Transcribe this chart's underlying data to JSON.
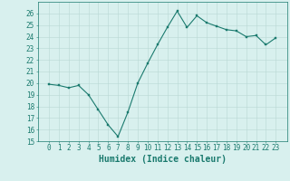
{
  "x": [
    0,
    1,
    2,
    3,
    4,
    5,
    6,
    7,
    8,
    9,
    10,
    11,
    12,
    13,
    14,
    15,
    16,
    17,
    18,
    19,
    20,
    21,
    22,
    23
  ],
  "y": [
    19.9,
    19.8,
    19.6,
    19.8,
    19.0,
    17.7,
    16.4,
    15.4,
    17.5,
    20.0,
    21.7,
    23.3,
    24.8,
    26.2,
    24.8,
    25.8,
    25.2,
    24.9,
    24.6,
    24.5,
    24.0,
    24.1,
    23.3,
    23.9
  ],
  "line_color": "#1a7a6e",
  "marker": "s",
  "marker_size": 1.8,
  "bg_color": "#d8f0ee",
  "grid_color": "#b8d8d4",
  "tick_color": "#1a7a6e",
  "label_color": "#1a7a6e",
  "xlabel": "Humidex (Indice chaleur)",
  "ylim": [
    15,
    27
  ],
  "yticks": [
    15,
    16,
    17,
    18,
    19,
    20,
    21,
    22,
    23,
    24,
    25,
    26
  ],
  "xticks": [
    0,
    1,
    2,
    3,
    4,
    5,
    6,
    7,
    8,
    9,
    10,
    11,
    12,
    13,
    14,
    15,
    16,
    17,
    18,
    19,
    20,
    21,
    22,
    23
  ],
  "xlabel_fontsize": 7,
  "tick_fontsize": 5.5,
  "linewidth": 0.8
}
